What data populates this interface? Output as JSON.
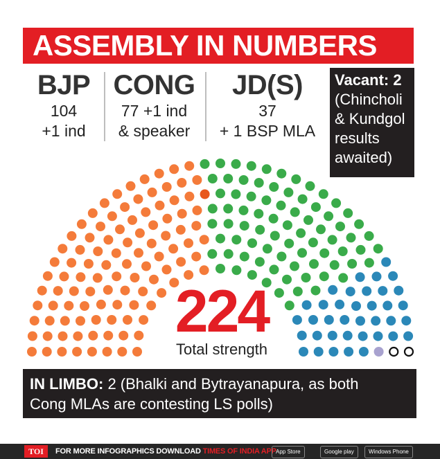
{
  "title": "ASSEMBLY IN NUMBERS",
  "parties": [
    {
      "name": "BJP",
      "line1": "104",
      "line2": "+1 ind"
    },
    {
      "name": "CONG",
      "line1": "77 +1 ind",
      "line2": "& speaker"
    },
    {
      "name": "JD(S)",
      "line1": "37",
      "line2": "+ 1  BSP MLA"
    }
  ],
  "vacant": {
    "heading": "Vacant: 2",
    "note_lines": [
      "(Chincholi",
      "& Kundgol",
      "results",
      "awaited)"
    ]
  },
  "total": {
    "value": "224",
    "label": "Total strength"
  },
  "limbo": {
    "label": "IN LIMBO:",
    "line1": " 2 (Bhalki and Bytrayanapura, as both",
    "line2": "Cong MLAs are contesting LS polls)"
  },
  "footer": {
    "toi": "TOI",
    "text": "FOR MORE  INFOGRAPHICS DOWNLOAD ",
    "app": "TIMES OF INDIA APP",
    "stores": [
      "App Store",
      "Google play",
      "Windows Phone"
    ]
  },
  "colors": {
    "bjp": "#f47b3a",
    "bjp_ind": "#e8571c",
    "cong": "#3aab4a",
    "jds": "#2b88b8",
    "bsp": "#a8a2cf",
    "vacant": "#ffffff",
    "black": "#111111",
    "accent": "#e31e24"
  },
  "chart_data": {
    "type": "parliament",
    "total": 224,
    "series": [
      {
        "name": "BJP",
        "values": [
          104
        ]
      },
      {
        "name": "+1 ind",
        "values": [
          1
        ]
      },
      {
        "name": "CONG",
        "values": [
          77
        ]
      },
      {
        "name": "+1 ind",
        "values": [
          1
        ]
      },
      {
        "name": "& speaker",
        "values": [
          1
        ]
      },
      {
        "name": "JD(S)",
        "values": [
          37
        ]
      },
      {
        "name": "+ 1  BSP MLA",
        "values": [
          1
        ]
      },
      {
        "name": "Vacant",
        "values": [
          2
        ]
      }
    ]
  }
}
